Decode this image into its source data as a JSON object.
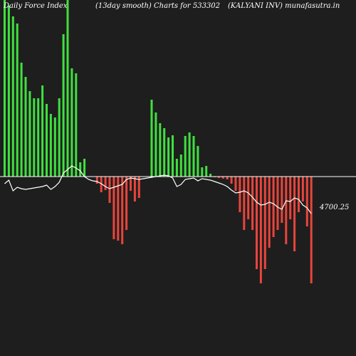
{
  "header": {
    "left": "Daily Force  Index",
    "middle": "(13day smooth) Charts for 533302",
    "right": "(KALYANI INV) munafasutra.in"
  },
  "colors": {
    "background": "#1e1e1e",
    "positive": "#3fe03f",
    "negative": "#e8453c",
    "baseline": "#ffffff",
    "smooth_line": "#ffffff"
  },
  "chart_data": {
    "type": "bar",
    "title": "Daily Force  Index",
    "value_label": "4700.25",
    "series": [
      {
        "name": "force_index",
        "values": [
          250,
          240,
          225,
          215,
          160,
          140,
          120,
          110,
          110,
          128,
          102,
          88,
          83,
          110,
          200,
          255,
          152,
          145,
          20,
          25,
          0,
          0,
          -10,
          -22,
          -19,
          -37,
          -88,
          -90,
          -95,
          -75,
          -20,
          -35,
          -30,
          0,
          0,
          108,
          90,
          75,
          68,
          55,
          58,
          25,
          31,
          57,
          62,
          57,
          43,
          13,
          15,
          4,
          -1,
          -2,
          -3,
          -4,
          -10,
          -20,
          -50,
          -75,
          -60,
          -75,
          -130,
          -150,
          -130,
          -100,
          -85,
          -75,
          -65,
          -95,
          -60,
          -105,
          -50,
          -35,
          -70,
          -150
        ]
      },
      {
        "name": "smooth",
        "values": [
          -10,
          -5,
          -20,
          -15,
          -17,
          -18,
          -17,
          -16,
          -15,
          -14,
          -12,
          -18,
          -14,
          -8,
          5,
          10,
          15,
          12,
          8,
          0,
          -4,
          -6,
          -7,
          -10,
          -14,
          -17,
          -15,
          -13,
          -11,
          -4,
          -2,
          -3,
          -4,
          -3,
          -2,
          -1,
          0,
          1,
          2,
          1,
          -2,
          -14,
          -11,
          -4,
          -3,
          -2,
          -6,
          -3,
          -4,
          -5,
          -7,
          -9,
          -11,
          -14,
          -19,
          -23,
          -22,
          -20,
          -23,
          -29,
          -36,
          -40,
          -39,
          -36,
          -38,
          -43,
          -46,
          -34,
          -35,
          -30,
          -32,
          -40,
          -44,
          -52
        ]
      }
    ]
  }
}
